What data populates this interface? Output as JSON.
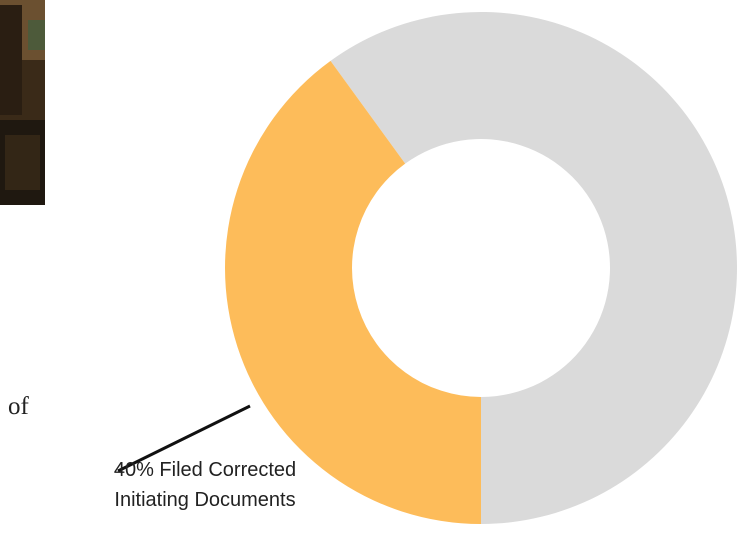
{
  "page_text": "of",
  "chart_data": {
    "type": "donut",
    "values": [
      40,
      60
    ],
    "labels": [
      "40% Filed Corrected Initiating Documents",
      null
    ],
    "colors": [
      "#fdbc5a",
      "#dadada"
    ]
  }
}
